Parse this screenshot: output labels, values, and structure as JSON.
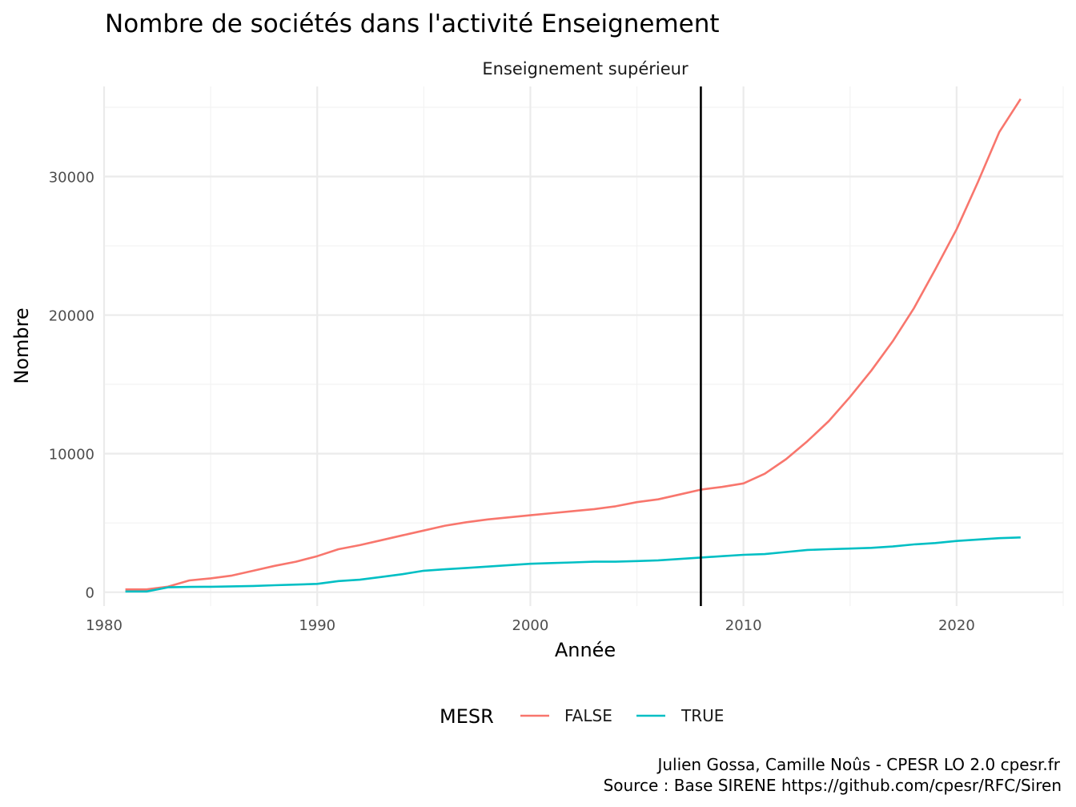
{
  "chart_data": {
    "type": "line",
    "title": "Nombre de sociétés dans l'activité Enseignement",
    "facet_label": "Enseignement supérieur",
    "xlabel": "Année",
    "ylabel": "Nombre",
    "xlim": [
      1980,
      2025
    ],
    "ylim": [
      -1000,
      36500
    ],
    "x_ticks": [
      1980,
      1990,
      2000,
      2010,
      2020
    ],
    "x_tick_labels": [
      "1980",
      "1990",
      "2000",
      "2010",
      "2020"
    ],
    "y_ticks": [
      0,
      10000,
      20000,
      30000
    ],
    "y_tick_labels": [
      "0",
      "10000",
      "20000",
      "30000"
    ],
    "grid": true,
    "legend": {
      "title": "MESR",
      "position": "bottom"
    },
    "vertical_line": {
      "x": 2008,
      "color": "#000000"
    },
    "series": [
      {
        "name": "FALSE",
        "color": "#f8766d",
        "x": [
          1981,
          1982,
          1983,
          1984,
          1985,
          1986,
          1987,
          1988,
          1989,
          1990,
          1991,
          1992,
          1993,
          1994,
          1995,
          1996,
          1997,
          1998,
          1999,
          2000,
          2001,
          2002,
          2003,
          2004,
          2005,
          2006,
          2007,
          2008,
          2009,
          2010,
          2011,
          2012,
          2013,
          2014,
          2015,
          2016,
          2017,
          2018,
          2019,
          2020,
          2021,
          2022,
          2023
        ],
        "values": [
          200,
          200,
          400,
          850,
          1000,
          1200,
          1550,
          1900,
          2200,
          2600,
          3100,
          3400,
          3750,
          4100,
          4450,
          4800,
          5050,
          5250,
          5400,
          5550,
          5700,
          5850,
          6000,
          6200,
          6500,
          6700,
          7050,
          7400,
          7600,
          7850,
          8550,
          9600,
          10900,
          12350,
          14100,
          16000,
          18100,
          20500,
          23300,
          26200,
          29600,
          33200,
          35600
        ]
      },
      {
        "name": "TRUE",
        "color": "#00bfc4",
        "x": [
          1981,
          1982,
          1983,
          1984,
          1985,
          1986,
          1987,
          1988,
          1989,
          1990,
          1991,
          1992,
          1993,
          1994,
          1995,
          1996,
          1997,
          1998,
          1999,
          2000,
          2001,
          2002,
          2003,
          2004,
          2005,
          2006,
          2007,
          2008,
          2009,
          2010,
          2011,
          2012,
          2013,
          2014,
          2015,
          2016,
          2017,
          2018,
          2019,
          2020,
          2021,
          2022,
          2023
        ],
        "values": [
          50,
          50,
          350,
          380,
          390,
          420,
          450,
          500,
          550,
          600,
          800,
          900,
          1100,
          1300,
          1550,
          1650,
          1750,
          1850,
          1950,
          2050,
          2100,
          2150,
          2200,
          2200,
          2250,
          2300,
          2400,
          2500,
          2600,
          2700,
          2750,
          2900,
          3050,
          3100,
          3150,
          3200,
          3300,
          3450,
          3550,
          3700,
          3800,
          3900,
          3950
        ]
      }
    ]
  },
  "caption": {
    "line1": "Julien Gossa, Camille Noûs - CPESR LO 2.0 cpesr.fr",
    "line2": "Source : Base SIRENE https://github.com/cpesr/RFC/Siren"
  }
}
